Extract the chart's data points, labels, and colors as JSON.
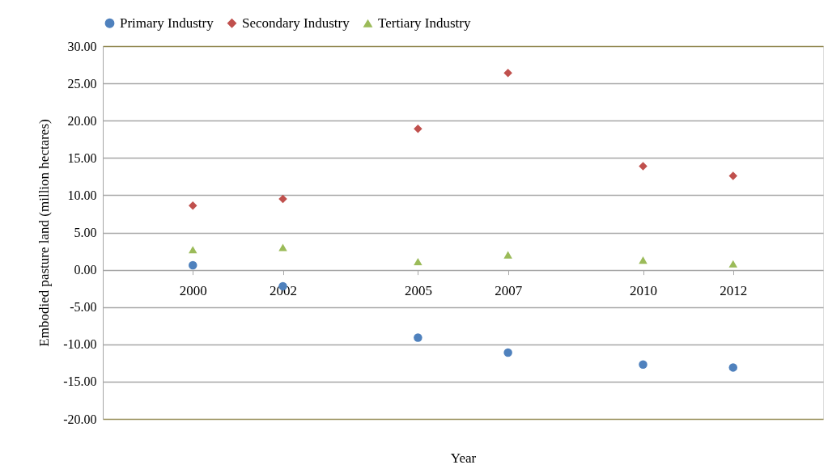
{
  "chart_data": {
    "type": "scatter",
    "xlabel": "Year",
    "ylabel": "Embodied pasture land (million hectares)",
    "x": [
      2000,
      2002,
      2005,
      2007,
      2010,
      2012
    ],
    "series": [
      {
        "name": "Primary Industry",
        "color": "#4f81bd",
        "marker": "circle",
        "values": [
          0.6,
          -2.2,
          -9.1,
          -11.1,
          -12.7,
          -13.1
        ]
      },
      {
        "name": "Secondary Industry",
        "color": "#c0504d",
        "marker": "diamond",
        "values": [
          8.6,
          9.5,
          18.9,
          26.4,
          13.9,
          12.6
        ]
      },
      {
        "name": "Tertiary Industry",
        "color": "#9bbb59",
        "marker": "triangle",
        "values": [
          2.7,
          3.0,
          1.1,
          2.0,
          1.3,
          0.8
        ]
      }
    ],
    "xlim": [
      1998,
      2014
    ],
    "xticks": [
      2000,
      2002,
      2005,
      2007,
      2010,
      2012
    ],
    "ylim": [
      -20,
      30
    ],
    "yticks": [
      {
        "value": -20,
        "label": "-20.00"
      },
      {
        "value": -15,
        "label": "-15.00"
      },
      {
        "value": -10,
        "label": "-10.00"
      },
      {
        "value": -5,
        "label": "-5.00"
      },
      {
        "value": 0,
        "label": "0.00"
      },
      {
        "value": 5,
        "label": "5.00"
      },
      {
        "value": 10,
        "label": "10.00"
      },
      {
        "value": 15,
        "label": "15.00"
      },
      {
        "value": 20,
        "label": "20.00"
      },
      {
        "value": 25,
        "label": "25.00"
      },
      {
        "value": 30,
        "label": "30.00"
      }
    ],
    "grid": "y",
    "legend": "top"
  }
}
